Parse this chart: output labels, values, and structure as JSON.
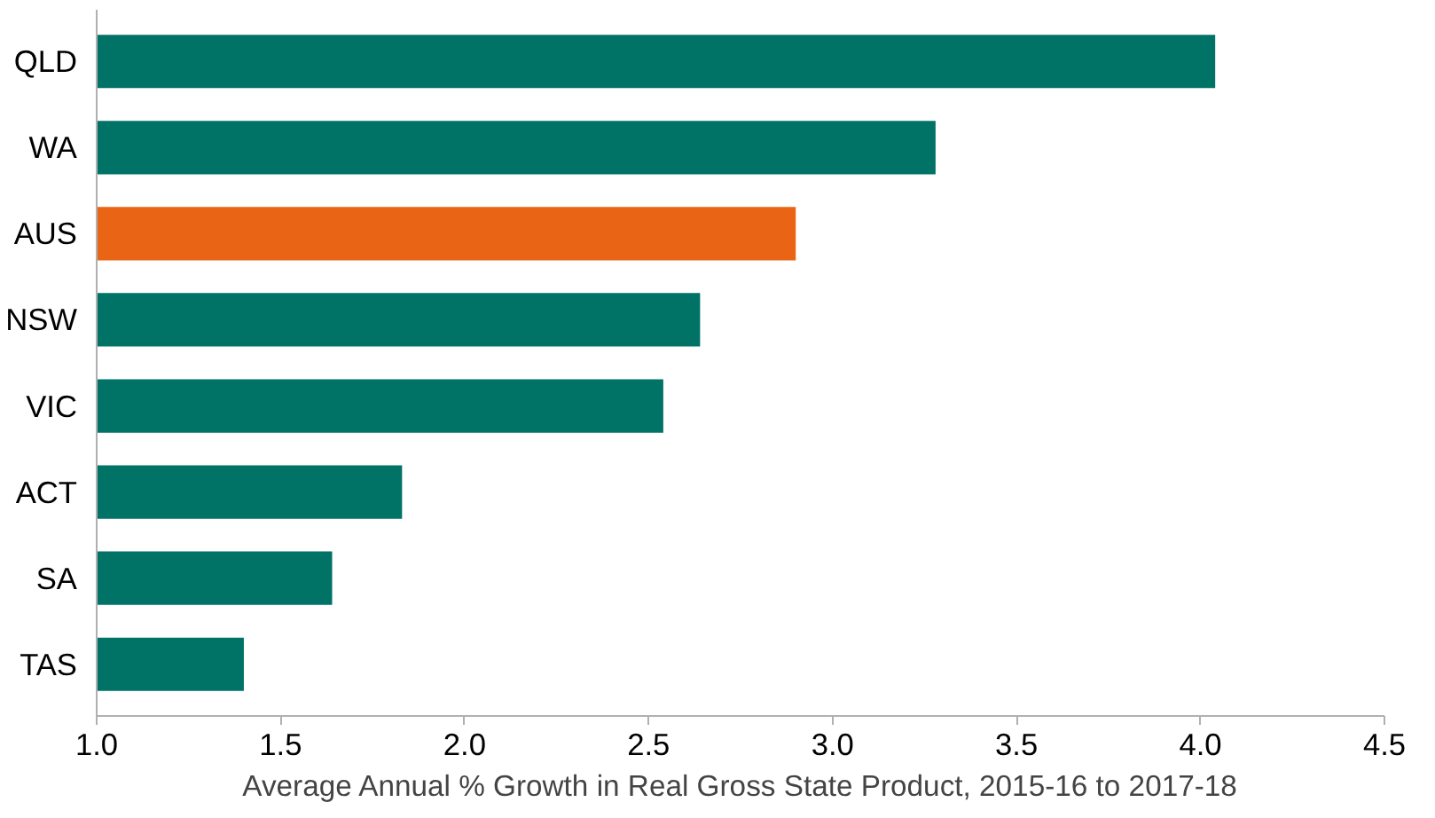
{
  "chart_data": {
    "type": "bar",
    "orientation": "horizontal",
    "xlabel": "Average Annual % Growth in Real Gross State Product, 2015-16 to 2017-18",
    "categories": [
      "QLD",
      "WA",
      "AUS",
      "NSW",
      "VIC",
      "ACT",
      "SA",
      "TAS"
    ],
    "values": [
      4.04,
      3.28,
      2.9,
      2.64,
      2.54,
      1.83,
      1.64,
      1.4
    ],
    "colors": [
      "#007266",
      "#007266",
      "#e96414",
      "#007266",
      "#007266",
      "#007266",
      "#007266",
      "#007266"
    ],
    "xlim": [
      1.0,
      4.5
    ],
    "xticks": [
      {
        "value": 1,
        "label": "1.0"
      },
      {
        "value": 1.5,
        "label": "1.5"
      },
      {
        "value": 2,
        "label": "2.0"
      },
      {
        "value": 2.5,
        "label": "2.5"
      },
      {
        "value": 3,
        "label": "3.0"
      },
      {
        "value": 3.5,
        "label": "3.5"
      },
      {
        "value": 4,
        "label": "4.0"
      },
      {
        "value": 4.5,
        "label": "4.5"
      }
    ],
    "grid": false
  }
}
